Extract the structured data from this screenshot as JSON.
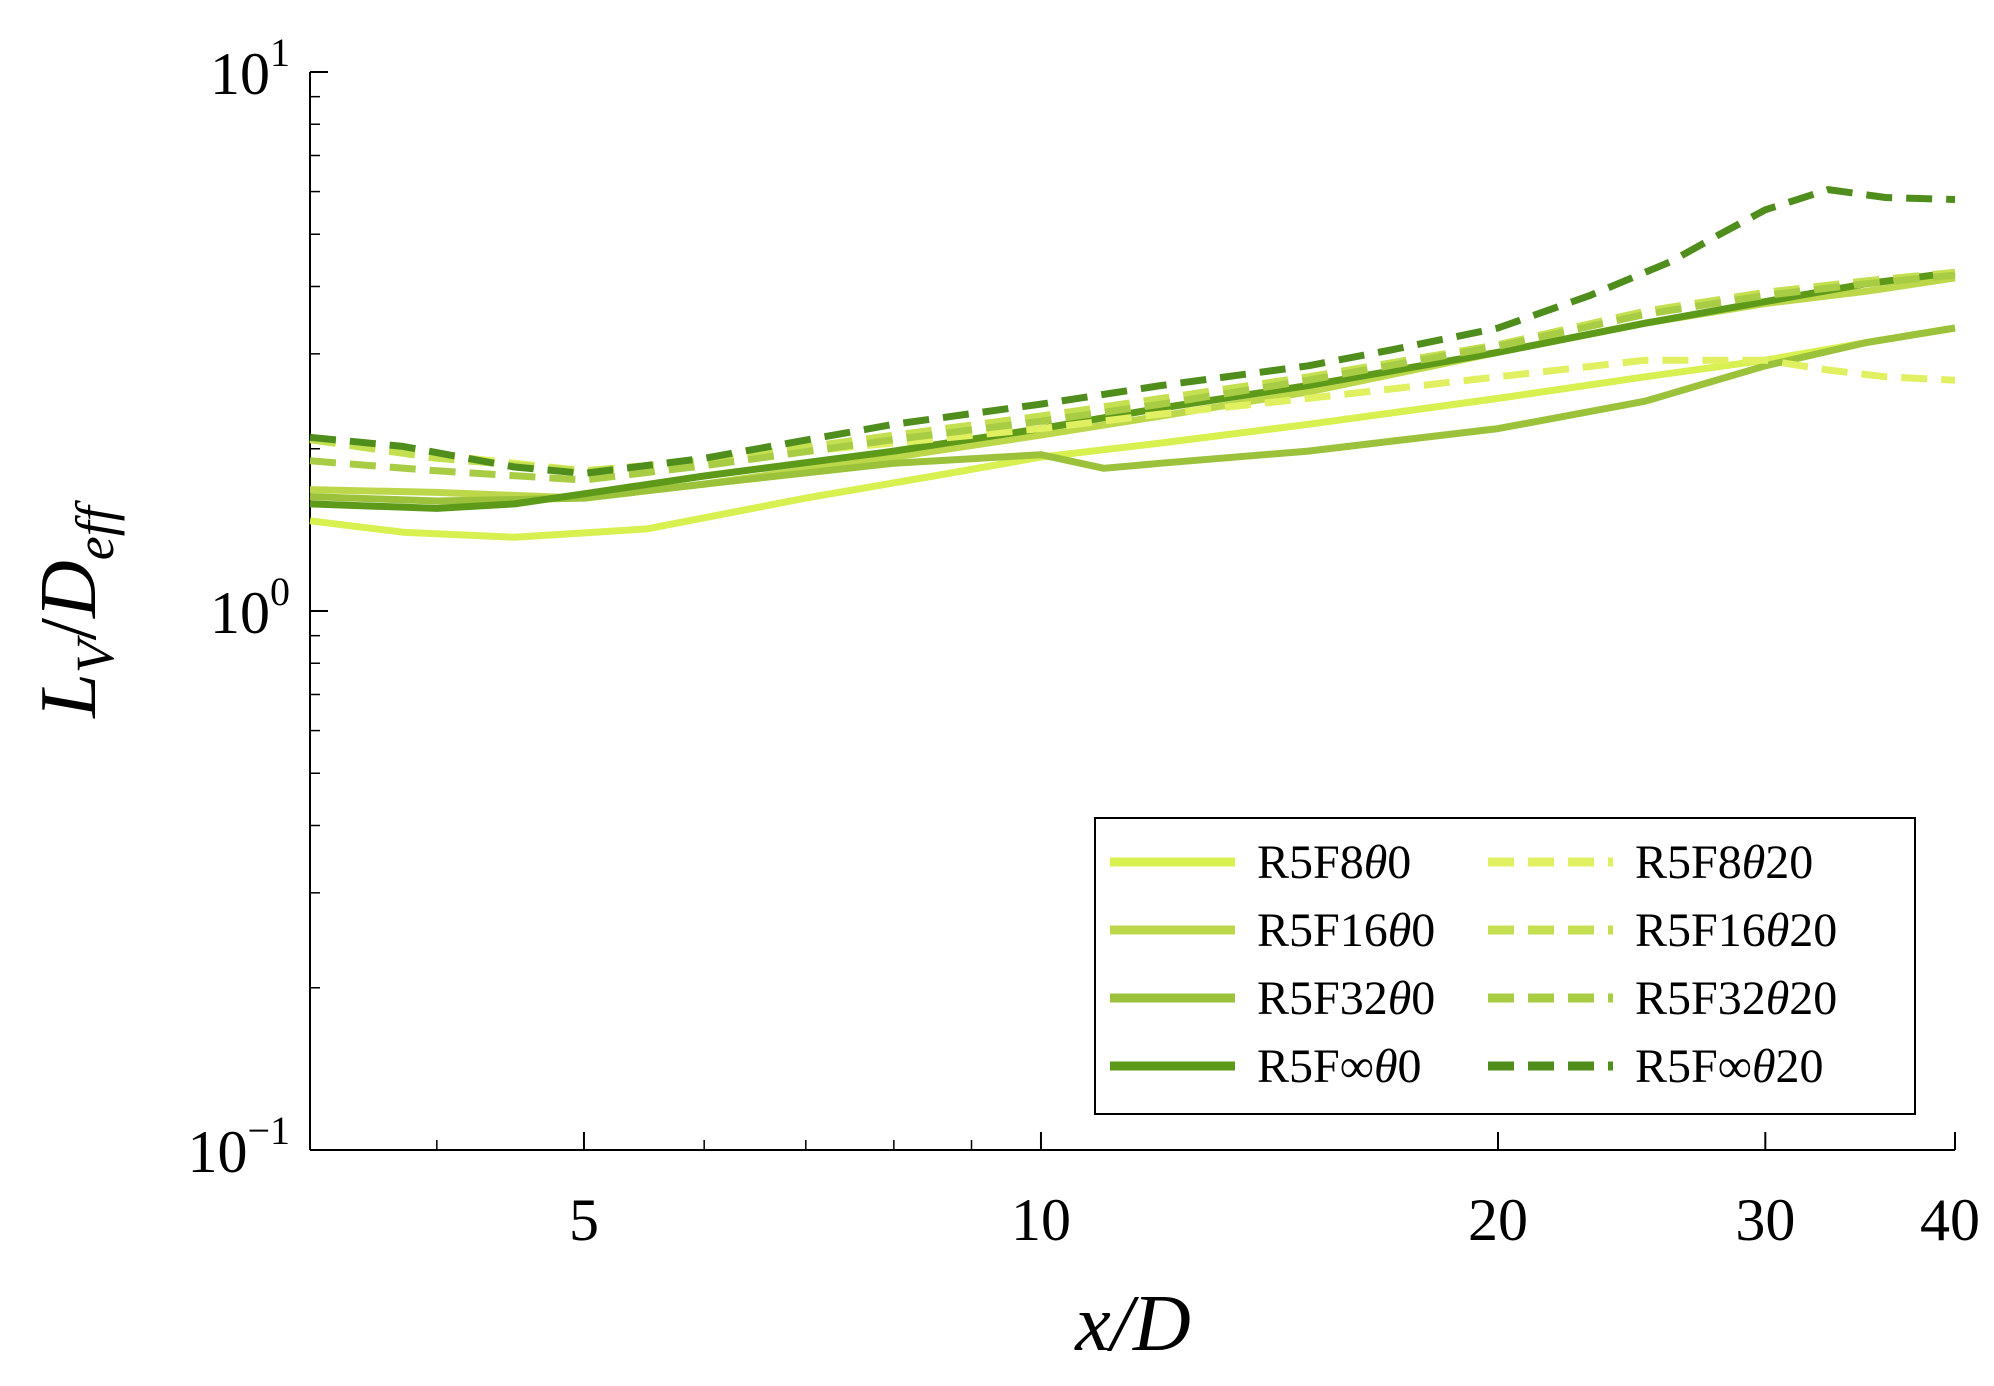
{
  "chart_data": {
    "type": "line",
    "xlabel": "x/D",
    "ylabel_parts": {
      "L": "L",
      "V": "V",
      "slash": "/",
      "D": "D",
      "eff": "eff"
    },
    "xscale": "log",
    "yscale": "log",
    "xlim": [
      3.3,
      40
    ],
    "ylim": [
      0.1,
      10
    ],
    "x_ticks": [
      {
        "value": 5,
        "label": "5"
      },
      {
        "value": 10,
        "label": "10"
      },
      {
        "value": 20,
        "label": "20"
      },
      {
        "value": 30,
        "label": "30"
      },
      {
        "value": 40,
        "label": "40"
      }
    ],
    "y_ticks": [
      {
        "value": 0.1,
        "base": "10",
        "exp": "−1"
      },
      {
        "value": 1,
        "base": "10",
        "exp": "0"
      },
      {
        "value": 10,
        "base": "10",
        "exp": "1"
      }
    ],
    "legend_position": "bottom-right",
    "series": [
      {
        "name": "R5F8θ0",
        "color": "#d8f050",
        "dash": "solid",
        "x": [
          3.3,
          3.8,
          4.5,
          5.5,
          7,
          8.5,
          10,
          12,
          15,
          20,
          25,
          30,
          35,
          40
        ],
        "y": [
          1.47,
          1.4,
          1.37,
          1.42,
          1.62,
          1.78,
          1.93,
          2.05,
          2.22,
          2.48,
          2.72,
          2.92,
          3.15,
          3.35
        ]
      },
      {
        "name": "R5F16θ0",
        "color": "#bcd84a",
        "dash": "solid",
        "x": [
          3.3,
          4,
          5,
          6,
          8,
          10,
          12,
          15,
          20,
          25,
          30,
          35,
          40
        ],
        "y": [
          1.68,
          1.66,
          1.62,
          1.72,
          1.93,
          2.12,
          2.3,
          2.55,
          3.02,
          3.42,
          3.72,
          3.92,
          4.15
        ]
      },
      {
        "name": "R5F32θ0",
        "color": "#9cc23c",
        "dash": "solid",
        "x": [
          3.3,
          4,
          5,
          6,
          8,
          10,
          11,
          12,
          15,
          20,
          25,
          30,
          35,
          40
        ],
        "y": [
          1.63,
          1.6,
          1.62,
          1.72,
          1.88,
          1.95,
          1.84,
          1.88,
          1.98,
          2.18,
          2.45,
          2.85,
          3.15,
          3.35
        ]
      },
      {
        "name": "R5F∞θ0",
        "color": "#5e9a1a",
        "dash": "solid",
        "x": [
          3.3,
          4,
          4.5,
          5,
          6,
          8,
          10,
          12,
          15,
          20,
          25,
          30,
          35,
          40
        ],
        "y": [
          1.58,
          1.55,
          1.58,
          1.65,
          1.78,
          1.98,
          2.18,
          2.38,
          2.62,
          3.02,
          3.42,
          3.75,
          4.05,
          4.25
        ]
      },
      {
        "name": "R5F8θ20",
        "color": "#e0f060",
        "dash": "dashed",
        "x": [
          3.3,
          4,
          5,
          6,
          8,
          10,
          12,
          15,
          20,
          25,
          30,
          33,
          36,
          40
        ],
        "y": [
          2.08,
          1.95,
          1.82,
          1.9,
          2.05,
          2.18,
          2.32,
          2.48,
          2.72,
          2.92,
          2.92,
          2.8,
          2.72,
          2.68
        ]
      },
      {
        "name": "R5F16θ20",
        "color": "#c4e050",
        "dash": "dashed",
        "x": [
          3.3,
          4,
          5,
          6,
          8,
          10,
          12,
          15,
          20,
          25,
          30,
          35,
          40
        ],
        "y": [
          2.08,
          1.92,
          1.82,
          1.9,
          2.12,
          2.3,
          2.48,
          2.72,
          3.12,
          3.6,
          3.9,
          4.1,
          4.25
        ]
      },
      {
        "name": "R5F32θ20",
        "color": "#a8cc44",
        "dash": "dashed",
        "x": [
          3.3,
          4,
          5,
          6,
          8,
          10,
          12,
          15,
          20,
          25,
          30,
          35,
          40
        ],
        "y": [
          1.9,
          1.82,
          1.75,
          1.86,
          2.08,
          2.25,
          2.42,
          2.68,
          3.1,
          3.55,
          3.85,
          4.05,
          4.2
        ]
      },
      {
        "name": "R5F∞θ20",
        "color": "#4f8e1c",
        "dash": "dashed",
        "x": [
          3.3,
          3.8,
          4.5,
          5,
          6,
          8,
          10,
          12,
          15,
          17,
          20,
          23,
          26,
          28,
          30,
          33,
          36,
          40
        ],
        "y": [
          2.1,
          2.02,
          1.85,
          1.8,
          1.92,
          2.22,
          2.42,
          2.62,
          2.85,
          3.05,
          3.35,
          3.85,
          4.45,
          5.0,
          5.55,
          6.05,
          5.85,
          5.8
        ]
      }
    ]
  }
}
